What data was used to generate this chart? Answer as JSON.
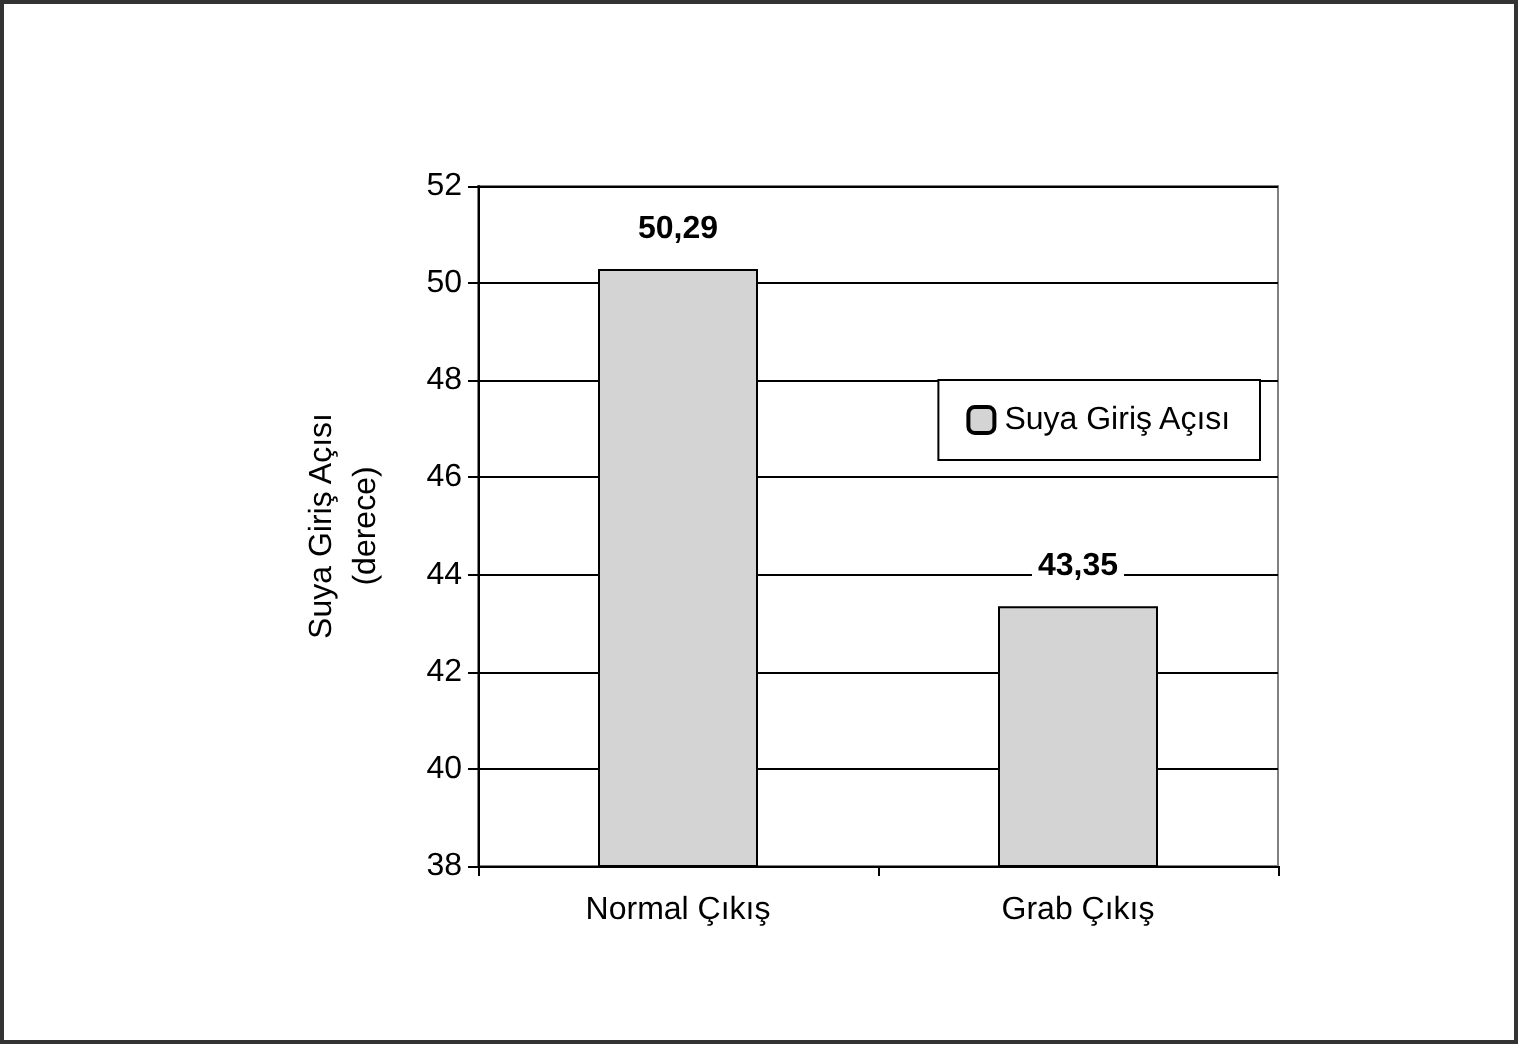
{
  "chart_data": {
    "type": "bar",
    "ylabel": "Suya Giriş Açısı\n(derece)",
    "categories": [
      "Normal Çıkış",
      "Grab Çıkış"
    ],
    "series": [
      {
        "name": "Suya Giriş Açısı",
        "color": "#d4d4d4",
        "values": [
          50.29,
          43.35
        ],
        "value_labels": [
          "50,29",
          "43,35"
        ]
      }
    ],
    "ylim": [
      38,
      52
    ],
    "yticks": [
      38,
      40,
      42,
      44,
      46,
      48,
      50,
      52
    ],
    "grid": "y",
    "legend": "right"
  }
}
